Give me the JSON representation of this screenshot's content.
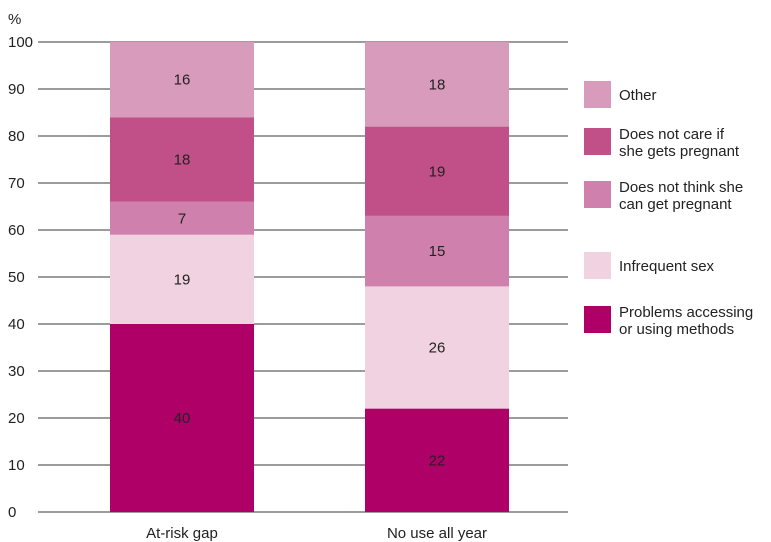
{
  "chart_data": {
    "type": "bar",
    "stacked": true,
    "unit_label": "%",
    "ylim": [
      0,
      100
    ],
    "yticks": [
      0,
      10,
      20,
      30,
      40,
      50,
      60,
      70,
      80,
      90,
      100
    ],
    "grid": true,
    "legend_position": "right",
    "categories": [
      "At-risk gap",
      "No use all year"
    ],
    "series": [
      {
        "name": "Problems accessing or using methods",
        "legend_lines": [
          "Problems accessing",
          "or using methods"
        ],
        "color": "#ae0067",
        "values": [
          40,
          22
        ]
      },
      {
        "name": "Infrequent sex",
        "legend_lines": [
          "Infrequent sex"
        ],
        "color": "#f0d2e0",
        "values": [
          19,
          26
        ]
      },
      {
        "name": "Does not think she can get pregnant",
        "legend_lines": [
          "Does not think she",
          "can get pregnant"
        ],
        "color": "#d080ac",
        "values": [
          7,
          15
        ]
      },
      {
        "name": "Does not care if she gets pregnant",
        "legend_lines": [
          "Does not care if",
          "she gets pregnant"
        ],
        "color": "#c15088",
        "values": [
          18,
          19
        ]
      },
      {
        "name": "Other",
        "legend_lines": [
          "Other"
        ],
        "color": "#d99bbb",
        "values": [
          16,
          18
        ]
      }
    ],
    "legend_order": [
      4,
      3,
      2,
      1,
      0
    ]
  }
}
